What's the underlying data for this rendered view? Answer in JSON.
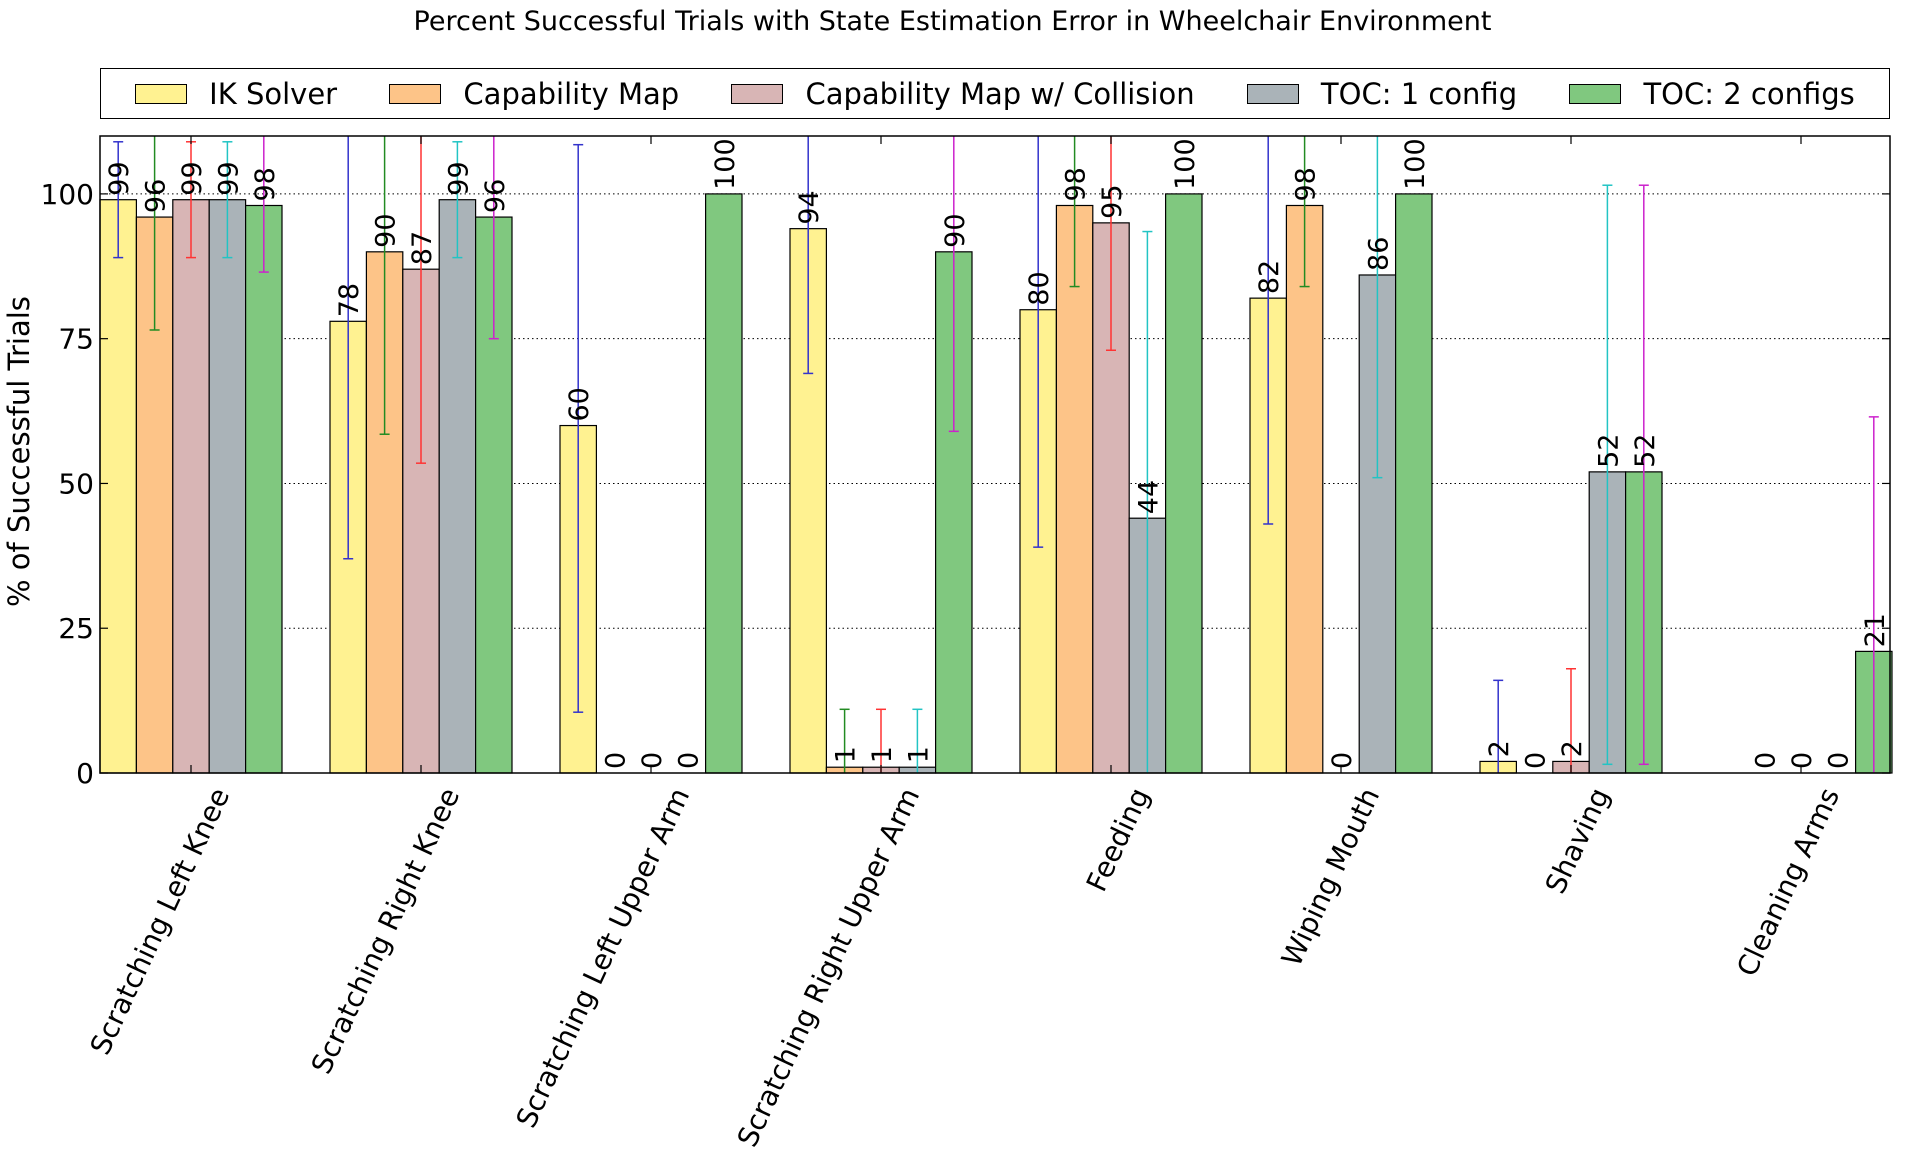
{
  "chart_data": {
    "type": "bar",
    "title": "Percent Successful Trials with State Estimation Error in Wheelchair Environment",
    "xlabel": "",
    "ylabel": "% of Successful Trials",
    "ylim": [
      0,
      110
    ],
    "yticks": [
      0,
      25,
      50,
      75,
      100
    ],
    "grid": true,
    "legend_position": "top",
    "categories": [
      "Scratching Left Knee",
      "Scratching Right Knee",
      "Scratching Left Upper Arm",
      "Scratching Right Upper Arm",
      "Feeding",
      "Wiping Mouth",
      "Shaving",
      "Cleaning Arms"
    ],
    "series": [
      {
        "name": "IK Solver",
        "color": "#fff291",
        "error_color": "#3333cc",
        "values": [
          99,
          78,
          60,
          94,
          80,
          82,
          2,
          0
        ],
        "labels": [
          "99",
          "78",
          "60",
          "94",
          "80",
          "82",
          "2",
          ""
        ],
        "error": [
          [
            89,
            109
          ],
          [
            37,
            119
          ],
          [
            10.5,
            108.5
          ],
          [
            69,
            119
          ],
          [
            39,
            119
          ],
          [
            43,
            119
          ],
          [
            0,
            16
          ],
          null
        ]
      },
      {
        "name": "Capability Map",
        "color": "#fdc488",
        "error_color": "#228b22",
        "values": [
          96,
          90,
          0,
          1,
          98,
          98,
          0,
          0
        ],
        "labels": [
          "96",
          "90",
          "0",
          "1",
          "98",
          "98",
          "0",
          "0"
        ],
        "error": [
          [
            76.5,
            115
          ],
          [
            58.5,
            115
          ],
          null,
          [
            0,
            11
          ],
          [
            84,
            115
          ],
          [
            84,
            115
          ],
          null,
          null
        ]
      },
      {
        "name": "Capability Map w/ Collision",
        "color": "#d8b5b5",
        "error_color": "#ff3333",
        "values": [
          99,
          87,
          0,
          1,
          95,
          0,
          2,
          0
        ],
        "labels": [
          "99",
          "87",
          "0",
          "1",
          "95",
          "0",
          "2",
          "0"
        ],
        "error": [
          [
            89,
            109
          ],
          [
            53.5,
            115
          ],
          null,
          [
            0,
            11
          ],
          [
            73,
            115
          ],
          null,
          [
            0,
            18
          ],
          null
        ]
      },
      {
        "name": "TOC: 1 config",
        "color": "#aab3b8",
        "error_color": "#22c4c4",
        "values": [
          99,
          99,
          0,
          1,
          44,
          86,
          52,
          0
        ],
        "labels": [
          "99",
          "99",
          "0",
          "1",
          "44",
          "86",
          "52",
          "0"
        ],
        "error": [
          [
            89,
            109
          ],
          [
            89,
            109
          ],
          null,
          [
            0,
            11
          ],
          [
            0,
            93.5
          ],
          [
            51,
            115
          ],
          [
            1.5,
            101.5
          ],
          null
        ]
      },
      {
        "name": "TOC: 2 configs",
        "color": "#80c87f",
        "error_color": "#cc22cc",
        "values": [
          98,
          96,
          100,
          90,
          100,
          100,
          52,
          21
        ],
        "labels": [
          "98",
          "96",
          "100",
          "90",
          "100",
          "100",
          "52",
          "21"
        ],
        "error": [
          [
            86.5,
            115
          ],
          [
            75,
            115
          ],
          null,
          [
            59,
            115
          ],
          null,
          null,
          [
            1.5,
            101.5
          ],
          [
            0,
            61.5
          ]
        ]
      }
    ]
  }
}
